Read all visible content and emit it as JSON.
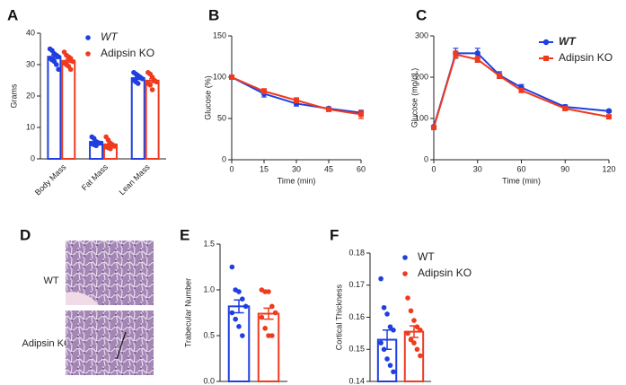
{
  "chart_data": [
    {
      "panel": "A",
      "type": "bar",
      "ylabel": "Grams",
      "categories": [
        "Body Mass",
        "Fat Mass",
        "Lean Mass"
      ],
      "ylim": [
        0,
        40
      ],
      "yticks": [
        0,
        10,
        20,
        30,
        40
      ],
      "legend": "upper right",
      "series": [
        {
          "name": "WT",
          "color": "#1f3fe0",
          "values": [
            32.5,
            5.4,
            25.7
          ],
          "errors": [
            0.6,
            0.3,
            0.4
          ],
          "points": [
            [
              35,
              34.5,
              33.5,
              33,
              32.5,
              32,
              31.5,
              31,
              30,
              28.5
            ],
            [
              7,
              6.5,
              5.5,
              5,
              5,
              4.8,
              4.5,
              4.2
            ],
            [
              27.5,
              27,
              26.5,
              26,
              25.5,
              25,
              24.5,
              24
            ]
          ]
        },
        {
          "name": "Adipsin KO",
          "color": "#f03a1e",
          "values": [
            31.2,
            4.6,
            24.9
          ],
          "errors": [
            0.5,
            0.4,
            0.6
          ],
          "points": [
            [
              34,
              33,
              32.5,
              32,
              31,
              30.5,
              30,
              29.5,
              28.5
            ],
            [
              7,
              6,
              5,
              4.5,
              4,
              3.8,
              3.5,
              3.2
            ],
            [
              27.5,
              27,
              26,
              25,
              24.5,
              24,
              23.5,
              22
            ]
          ]
        }
      ]
    },
    {
      "panel": "B",
      "type": "line",
      "xlabel": "Time (min)",
      "ylabel": "Glucose (%)",
      "x": [
        0,
        15,
        30,
        45,
        60
      ],
      "xlim": [
        0,
        60
      ],
      "xticks": [
        0,
        15,
        30,
        45,
        60
      ],
      "ylim": [
        0,
        150
      ],
      "yticks": [
        0,
        50,
        100,
        150
      ],
      "series": [
        {
          "color": "#1f3fe0",
          "marker": "circle",
          "values": [
            100,
            80,
            68,
            62,
            57
          ],
          "errors": [
            null,
            4,
            3,
            2,
            3
          ]
        },
        {
          "color": "#f03a1e",
          "marker": "square",
          "values": [
            100,
            83,
            72,
            61,
            55
          ],
          "errors": [
            null,
            3,
            3,
            2,
            5
          ]
        }
      ]
    },
    {
      "panel": "C",
      "type": "line",
      "xlabel": "Time (min)",
      "ylabel": "Glucose (mg/dL)",
      "x": [
        0,
        15,
        30,
        45,
        60,
        90,
        120
      ],
      "xlim": [
        0,
        120
      ],
      "xticks": [
        0,
        30,
        60,
        90,
        120
      ],
      "ylim": [
        0,
        300
      ],
      "yticks": [
        0,
        100,
        200,
        300
      ],
      "legend": "upper right",
      "series": [
        {
          "name": "WT",
          "color": "#1f3fe0",
          "marker": "circle",
          "values": [
            80,
            258,
            258,
            205,
            175,
            128,
            118
          ],
          "errors": [
            null,
            12,
            12,
            8,
            7,
            5,
            3
          ]
        },
        {
          "name": "Adipsin KO",
          "color": "#f03a1e",
          "marker": "square",
          "values": [
            78,
            255,
            243,
            203,
            168,
            124,
            104
          ],
          "errors": [
            null,
            8,
            7,
            6,
            5,
            4,
            3
          ]
        }
      ]
    },
    {
      "panel": "E",
      "type": "bar",
      "ylabel": "Trabecular Number",
      "ylim": [
        0,
        1.5
      ],
      "yticks": [
        {
          "value": 0,
          "label": "0.0"
        },
        0.5,
        {
          "value": 1,
          "label": "1.0"
        },
        1.5
      ],
      "series": [
        {
          "color": "#1f3fe0",
          "values": [
            0.82
          ],
          "errors": [
            0.07
          ],
          "points": [
            [
              1.25,
              1.0,
              0.98,
              0.9,
              0.82,
              0.75,
              0.68,
              0.6,
              0.5
            ]
          ]
        },
        {
          "color": "#f03a1e",
          "values": [
            0.74
          ],
          "errors": [
            0.06
          ],
          "points": [
            [
              1.0,
              0.98,
              0.98,
              0.82,
              0.75,
              0.7,
              0.58,
              0.5,
              0.5
            ]
          ]
        }
      ]
    },
    {
      "panel": "F",
      "type": "bar",
      "ylabel": "Cortical Thickness",
      "legend": "upper right",
      "ylim": [
        0.14,
        0.18
      ],
      "yticks": [
        0.14,
        0.15,
        0.16,
        0.17,
        0.18
      ],
      "series": [
        {
          "name": "WT",
          "color": "#1f3fe0",
          "values": [
            0.153
          ],
          "errors": [
            0.003
          ],
          "points": [
            [
              0.172,
              0.163,
              0.161,
              0.157,
              0.156,
              0.152,
              0.15,
              0.147,
              0.145,
              0.143
            ]
          ]
        },
        {
          "name": "Adipsin KO",
          "color": "#f03a1e",
          "values": [
            0.1555
          ],
          "errors": [
            0.0018
          ],
          "points": [
            [
              0.166,
              0.162,
              0.159,
              0.157,
              0.156,
              0.155,
              0.153,
              0.152,
              0.15,
              0.148
            ]
          ]
        }
      ]
    }
  ],
  "image_panel": {
    "panel": "D",
    "rows": [
      "WT",
      "Adipsin KO"
    ]
  }
}
